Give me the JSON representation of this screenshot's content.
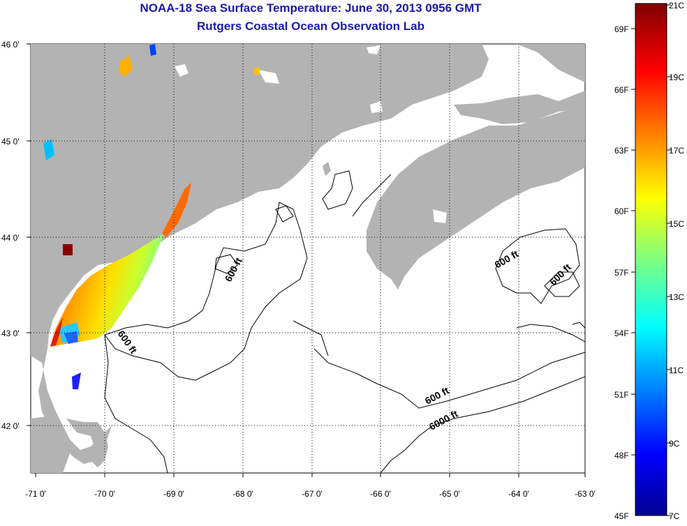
{
  "header": {
    "title": "NOAA-18 Sea Surface Temperature:  June 30, 2013 0956 GMT",
    "subtitle": "Rutgers Coastal Ocean Observation Lab"
  },
  "map": {
    "lat_ticks": [
      {
        "value": 46,
        "label": "46 0'"
      },
      {
        "value": 45,
        "label": "45 0'"
      },
      {
        "value": 44,
        "label": "44 0'"
      },
      {
        "value": 43,
        "label": "43 0'"
      },
      {
        "value": 42,
        "label": "42 0'"
      }
    ],
    "lon_ticks": [
      {
        "value": -71,
        "label": "-71 0'"
      },
      {
        "value": -70,
        "label": "-70 0'"
      },
      {
        "value": -69,
        "label": "-69 0'"
      },
      {
        "value": -68,
        "label": "-68 0'"
      },
      {
        "value": -67,
        "label": "-67 0'"
      },
      {
        "value": -66,
        "label": "-66 0'"
      },
      {
        "value": -65,
        "label": "-65 0'"
      },
      {
        "value": -64,
        "label": "-64 0'"
      },
      {
        "value": -63,
        "label": "-63 0'"
      }
    ],
    "land_color": "#b3b3b3",
    "ocean_color": "#ffffff",
    "contour_labels": [
      "600 ft",
      "600 ft",
      "600 ft",
      "600 ft",
      "600 ft",
      "6000 ft"
    ]
  },
  "colorbar": {
    "celsius_labels": [
      "21C",
      "19C",
      "17C",
      "15C",
      "13C",
      "11C",
      "9C",
      "7C"
    ],
    "fahrenheit_labels": [
      "69F",
      "66F",
      "63F",
      "60F",
      "57F",
      "54F",
      "51F",
      "48F",
      "45F"
    ],
    "colormap": "jet"
  }
}
